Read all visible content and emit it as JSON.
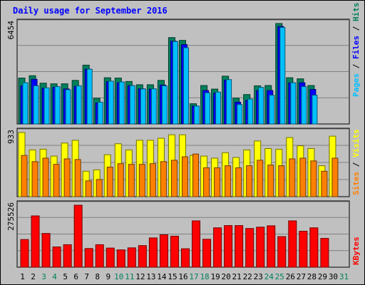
{
  "title": "Daily usage for September 2016",
  "colors": {
    "background": "#c0c0c0",
    "panel": "#c0c0c0",
    "title": "#0000ff",
    "hits": "#00805c",
    "files": "#0000ff",
    "pages": "#00c0ff",
    "visits": "#ffff00",
    "sites": "#ff8000",
    "kbytes": "#ff0000",
    "weekend_label": "#00805c",
    "weekday_label": "#000000"
  },
  "chart_data": [
    {
      "type": "bar",
      "name": "hits-files-pages",
      "ylabel_parts": [
        "Pages",
        "Files",
        "Hits"
      ],
      "max_label": "6454",
      "ylim": [
        0,
        6454
      ],
      "categories": [
        "1",
        "2",
        "3",
        "4",
        "5",
        "6",
        "7",
        "8",
        "9",
        "10",
        "11",
        "12",
        "13",
        "14",
        "15",
        "16",
        "17",
        "18",
        "19",
        "20",
        "21",
        "22",
        "23",
        "24",
        "25",
        "26",
        "27",
        "28",
        "29",
        "30",
        "31"
      ],
      "weekend": [
        false,
        false,
        true,
        true,
        false,
        false,
        false,
        false,
        false,
        true,
        true,
        false,
        false,
        false,
        false,
        false,
        true,
        true,
        false,
        false,
        false,
        false,
        false,
        true,
        true,
        false,
        false,
        false,
        false,
        false,
        true
      ],
      "series": [
        {
          "name": "Hits",
          "values": [
            2950,
            3100,
            2620,
            2580,
            2580,
            2800,
            3780,
            1650,
            2970,
            2950,
            2730,
            2520,
            2520,
            2800,
            5550,
            5370,
            1300,
            2470,
            2240,
            3070,
            1660,
            1890,
            2450,
            2470,
            6454,
            2970,
            2900,
            2470,
            0,
            0,
            0
          ]
        },
        {
          "name": "Files",
          "values": [
            2450,
            2870,
            2300,
            2360,
            2250,
            2420,
            3520,
            1350,
            2720,
            2650,
            2460,
            2260,
            2240,
            2500,
            5320,
            5100,
            1150,
            2150,
            1980,
            2820,
            1400,
            1520,
            2150,
            2150,
            6260,
            2650,
            2650,
            2220,
            0,
            0,
            0
          ]
        },
        {
          "name": "Pages",
          "values": [
            2650,
            2450,
            2320,
            2400,
            2200,
            2450,
            3520,
            1400,
            2750,
            2700,
            2460,
            2250,
            2260,
            2450,
            5300,
            4900,
            1150,
            2000,
            2050,
            2850,
            1250,
            1600,
            2350,
            1850,
            6200,
            2650,
            2400,
            1850,
            0,
            0,
            0
          ]
        }
      ]
    },
    {
      "type": "bar",
      "name": "visits-sites",
      "ylabel_parts": [
        "Sites",
        "Visits"
      ],
      "max_label": "933",
      "ylim": [
        0,
        933
      ],
      "categories": [
        "1",
        "2",
        "3",
        "4",
        "5",
        "6",
        "7",
        "8",
        "9",
        "10",
        "11",
        "12",
        "13",
        "14",
        "15",
        "16",
        "17",
        "18",
        "19",
        "20",
        "21",
        "22",
        "23",
        "24",
        "25",
        "26",
        "27",
        "28",
        "29",
        "30",
        "31"
      ],
      "series": [
        {
          "name": "Visits",
          "values": [
            933,
            680,
            690,
            590,
            780,
            820,
            370,
            390,
            610,
            770,
            680,
            820,
            820,
            850,
            900,
            900,
            600,
            590,
            560,
            640,
            570,
            680,
            810,
            700,
            690,
            860,
            740,
            700,
            450,
            880,
            0
          ]
        },
        {
          "name": "Sites",
          "values": [
            600,
            510,
            560,
            470,
            550,
            540,
            230,
            250,
            430,
            480,
            470,
            470,
            480,
            510,
            530,
            580,
            620,
            420,
            420,
            450,
            420,
            450,
            530,
            460,
            450,
            550,
            560,
            520,
            370,
            560,
            0
          ]
        }
      ]
    },
    {
      "type": "bar",
      "name": "kbytes",
      "ylabel_parts": [
        "KBytes"
      ],
      "max_label": "275526",
      "ylim": [
        0,
        275526
      ],
      "categories": [
        "1",
        "2",
        "3",
        "4",
        "5",
        "6",
        "7",
        "8",
        "9",
        "10",
        "11",
        "12",
        "13",
        "14",
        "15",
        "16",
        "17",
        "18",
        "19",
        "20",
        "21",
        "22",
        "23",
        "24",
        "25",
        "26",
        "27",
        "28",
        "29",
        "30",
        "31"
      ],
      "series": [
        {
          "name": "KBytes",
          "values": [
            123000,
            228000,
            150000,
            90000,
            100000,
            275526,
            83000,
            100000,
            85000,
            77000,
            86000,
            96000,
            130000,
            144000,
            138000,
            82000,
            206000,
            124000,
            175000,
            185000,
            185000,
            172000,
            178000,
            184000,
            136000,
            206000,
            160000,
            175000,
            128000,
            0,
            0
          ]
        }
      ]
    }
  ]
}
